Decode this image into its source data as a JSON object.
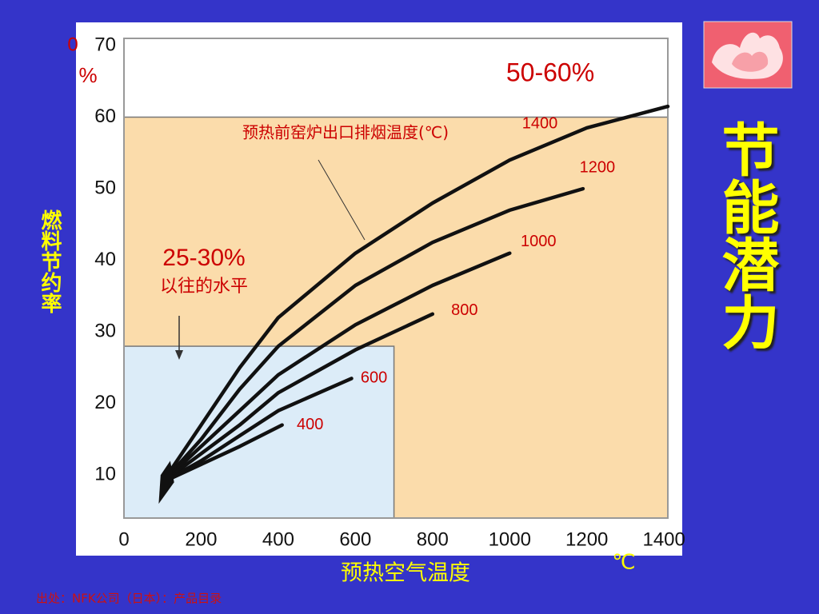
{
  "chart_data": {
    "type": "line",
    "title": "节能潜力",
    "x_label": "预热空气温度",
    "x_unit": "℃",
    "y_label": "燃料节约率",
    "y_unit": "%",
    "y_origin_label": "0",
    "source": "出处：NFK公司（日本）：产品目录",
    "annotations": [
      "50-60%",
      "25-30%",
      "以往的水平",
      "预热前窑炉出口排烟温度(℃)"
    ],
    "xlim": [
      0,
      1410
    ],
    "ylim": [
      4,
      71
    ],
    "xticks": [
      0,
      200,
      400,
      600,
      800,
      1000,
      1200,
      1400
    ],
    "yticks": [
      10,
      20,
      30,
      40,
      50,
      60,
      70
    ],
    "grid": false,
    "shaded_regions": [
      {
        "x": [
          0,
          1410
        ],
        "y": [
          4,
          60
        ],
        "color": "#fbdcab"
      },
      {
        "x": [
          0,
          700
        ],
        "y": [
          4,
          28
        ],
        "color": "#dcecf8"
      }
    ],
    "series": [
      {
        "name": "1400",
        "color": "#111111",
        "x": [
          100,
          200,
          300,
          400,
          600,
          800,
          1000,
          1200,
          1410
        ],
        "values": [
          9,
          17,
          25,
          32,
          41,
          48,
          54,
          58.5,
          61.5
        ]
      },
      {
        "name": "1200",
        "color": "#111111",
        "x": [
          100,
          200,
          300,
          400,
          600,
          800,
          1000,
          1190
        ],
        "values": [
          9,
          15,
          22,
          28,
          36.5,
          42.5,
          47,
          50
        ]
      },
      {
        "name": "1000",
        "color": "#111111",
        "x": [
          100,
          200,
          300,
          400,
          600,
          800,
          1000
        ],
        "values": [
          9,
          14,
          19,
          24,
          31,
          36.5,
          41
        ]
      },
      {
        "name": "800",
        "color": "#111111",
        "x": [
          100,
          200,
          300,
          400,
          600,
          800
        ],
        "values": [
          9,
          13,
          17,
          21.5,
          27.5,
          32.5
        ]
      },
      {
        "name": "600",
        "color": "#111111",
        "x": [
          100,
          200,
          300,
          400,
          590
        ],
        "values": [
          9,
          12,
          15.5,
          19,
          23.5
        ]
      },
      {
        "name": "400",
        "color": "#111111",
        "x": [
          100,
          200,
          300,
          410
        ],
        "values": [
          9,
          11.5,
          14,
          17
        ]
      }
    ]
  }
}
